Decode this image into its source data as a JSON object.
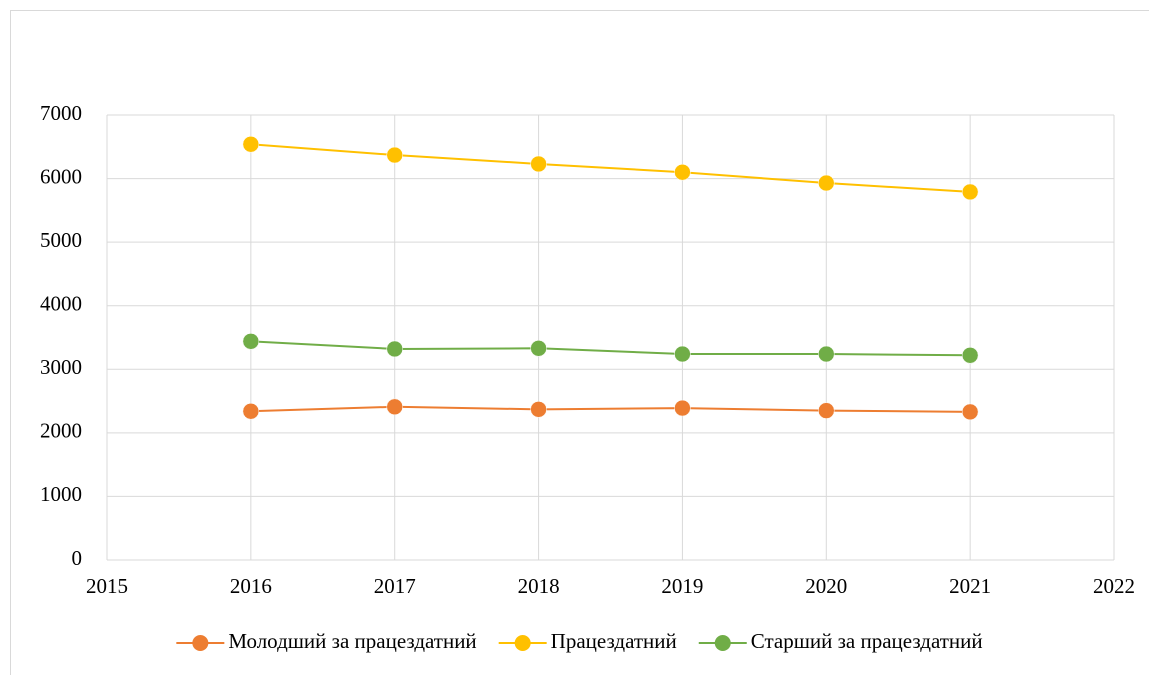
{
  "chart_data": {
    "type": "line",
    "x": [
      2016,
      2017,
      2018,
      2019,
      2020,
      2021
    ],
    "series": [
      {
        "name": "Молодший за працездатний",
        "color": "#ed7d31",
        "values": [
          2340,
          2410,
          2370,
          2390,
          2350,
          2330
        ]
      },
      {
        "name": "Працездатний",
        "color": "#ffc000",
        "values": [
          6540,
          6370,
          6230,
          6100,
          5930,
          5790
        ]
      },
      {
        "name": "Старший за працездатний",
        "color": "#70ad47",
        "values": [
          3440,
          3320,
          3330,
          3240,
          3240,
          3220
        ]
      }
    ],
    "xlim": [
      2015,
      2022
    ],
    "xticks": [
      2015,
      2016,
      2017,
      2018,
      2019,
      2020,
      2021,
      2022
    ],
    "ylim": [
      0,
      7000
    ],
    "yticks": [
      0,
      1000,
      2000,
      3000,
      4000,
      5000,
      6000,
      7000
    ],
    "grid": true,
    "legend": "bottom"
  }
}
